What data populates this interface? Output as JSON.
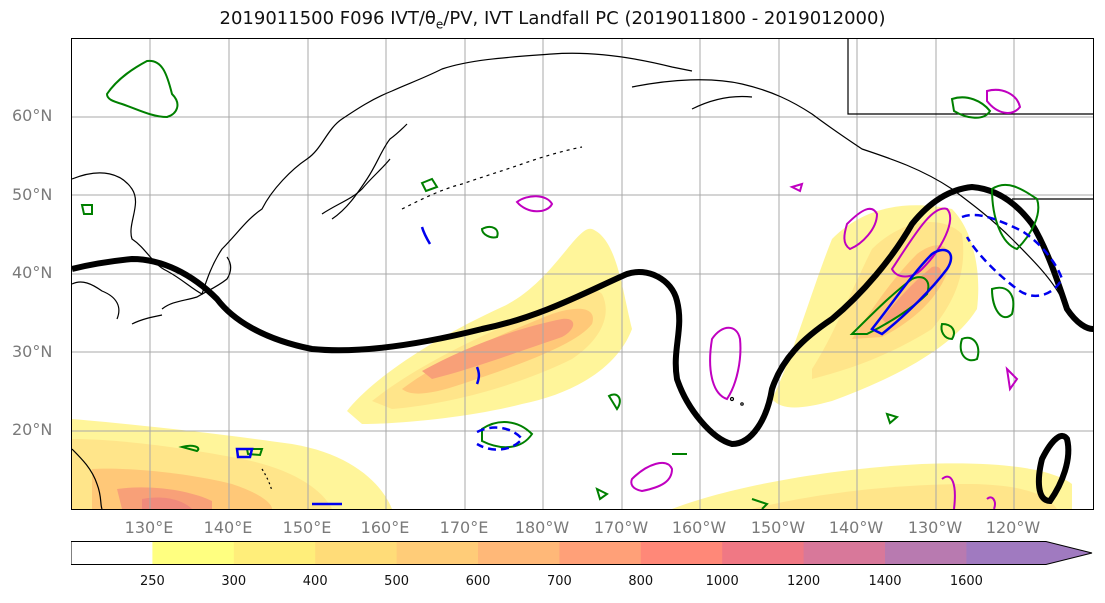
{
  "title": "2019011500 F096 IVT/θ",
  "title_sub": "e",
  "title_rest": "/PV, IVT Landfall PC (2019011800 - 2019012000)",
  "lat_labels": [
    "60°N",
    "50°N",
    "40°N",
    "30°N",
    "20°N"
  ],
  "lon_labels": [
    "130°E",
    "140°E",
    "150°E",
    "160°E",
    "170°E",
    "180°W",
    "170°W",
    "160°W",
    "150°W",
    "140°W",
    "130°W",
    "120°W"
  ],
  "colorbar": {
    "levels": [
      "250",
      "300",
      "400",
      "500",
      "600",
      "700",
      "800",
      "1000",
      "1200",
      "1400",
      "1600"
    ],
    "colors": [
      "#ffffff",
      "#ffff80",
      "#ffee7a",
      "#ffdc78",
      "#ffcc78",
      "#ffb878",
      "#ffa078",
      "#ff8878",
      "#f07884",
      "#d8789a",
      "#b87ab0",
      "#a07ac0"
    ]
  },
  "colors": {
    "ivt_low": "#fff59a",
    "ivt_mid": "#ffc878",
    "ivt_high": "#f08878",
    "jet_contour": "#000000",
    "pv_green": "#008000",
    "theta_magenta": "#c000c0",
    "landfall_blue": "#0000ee"
  }
}
